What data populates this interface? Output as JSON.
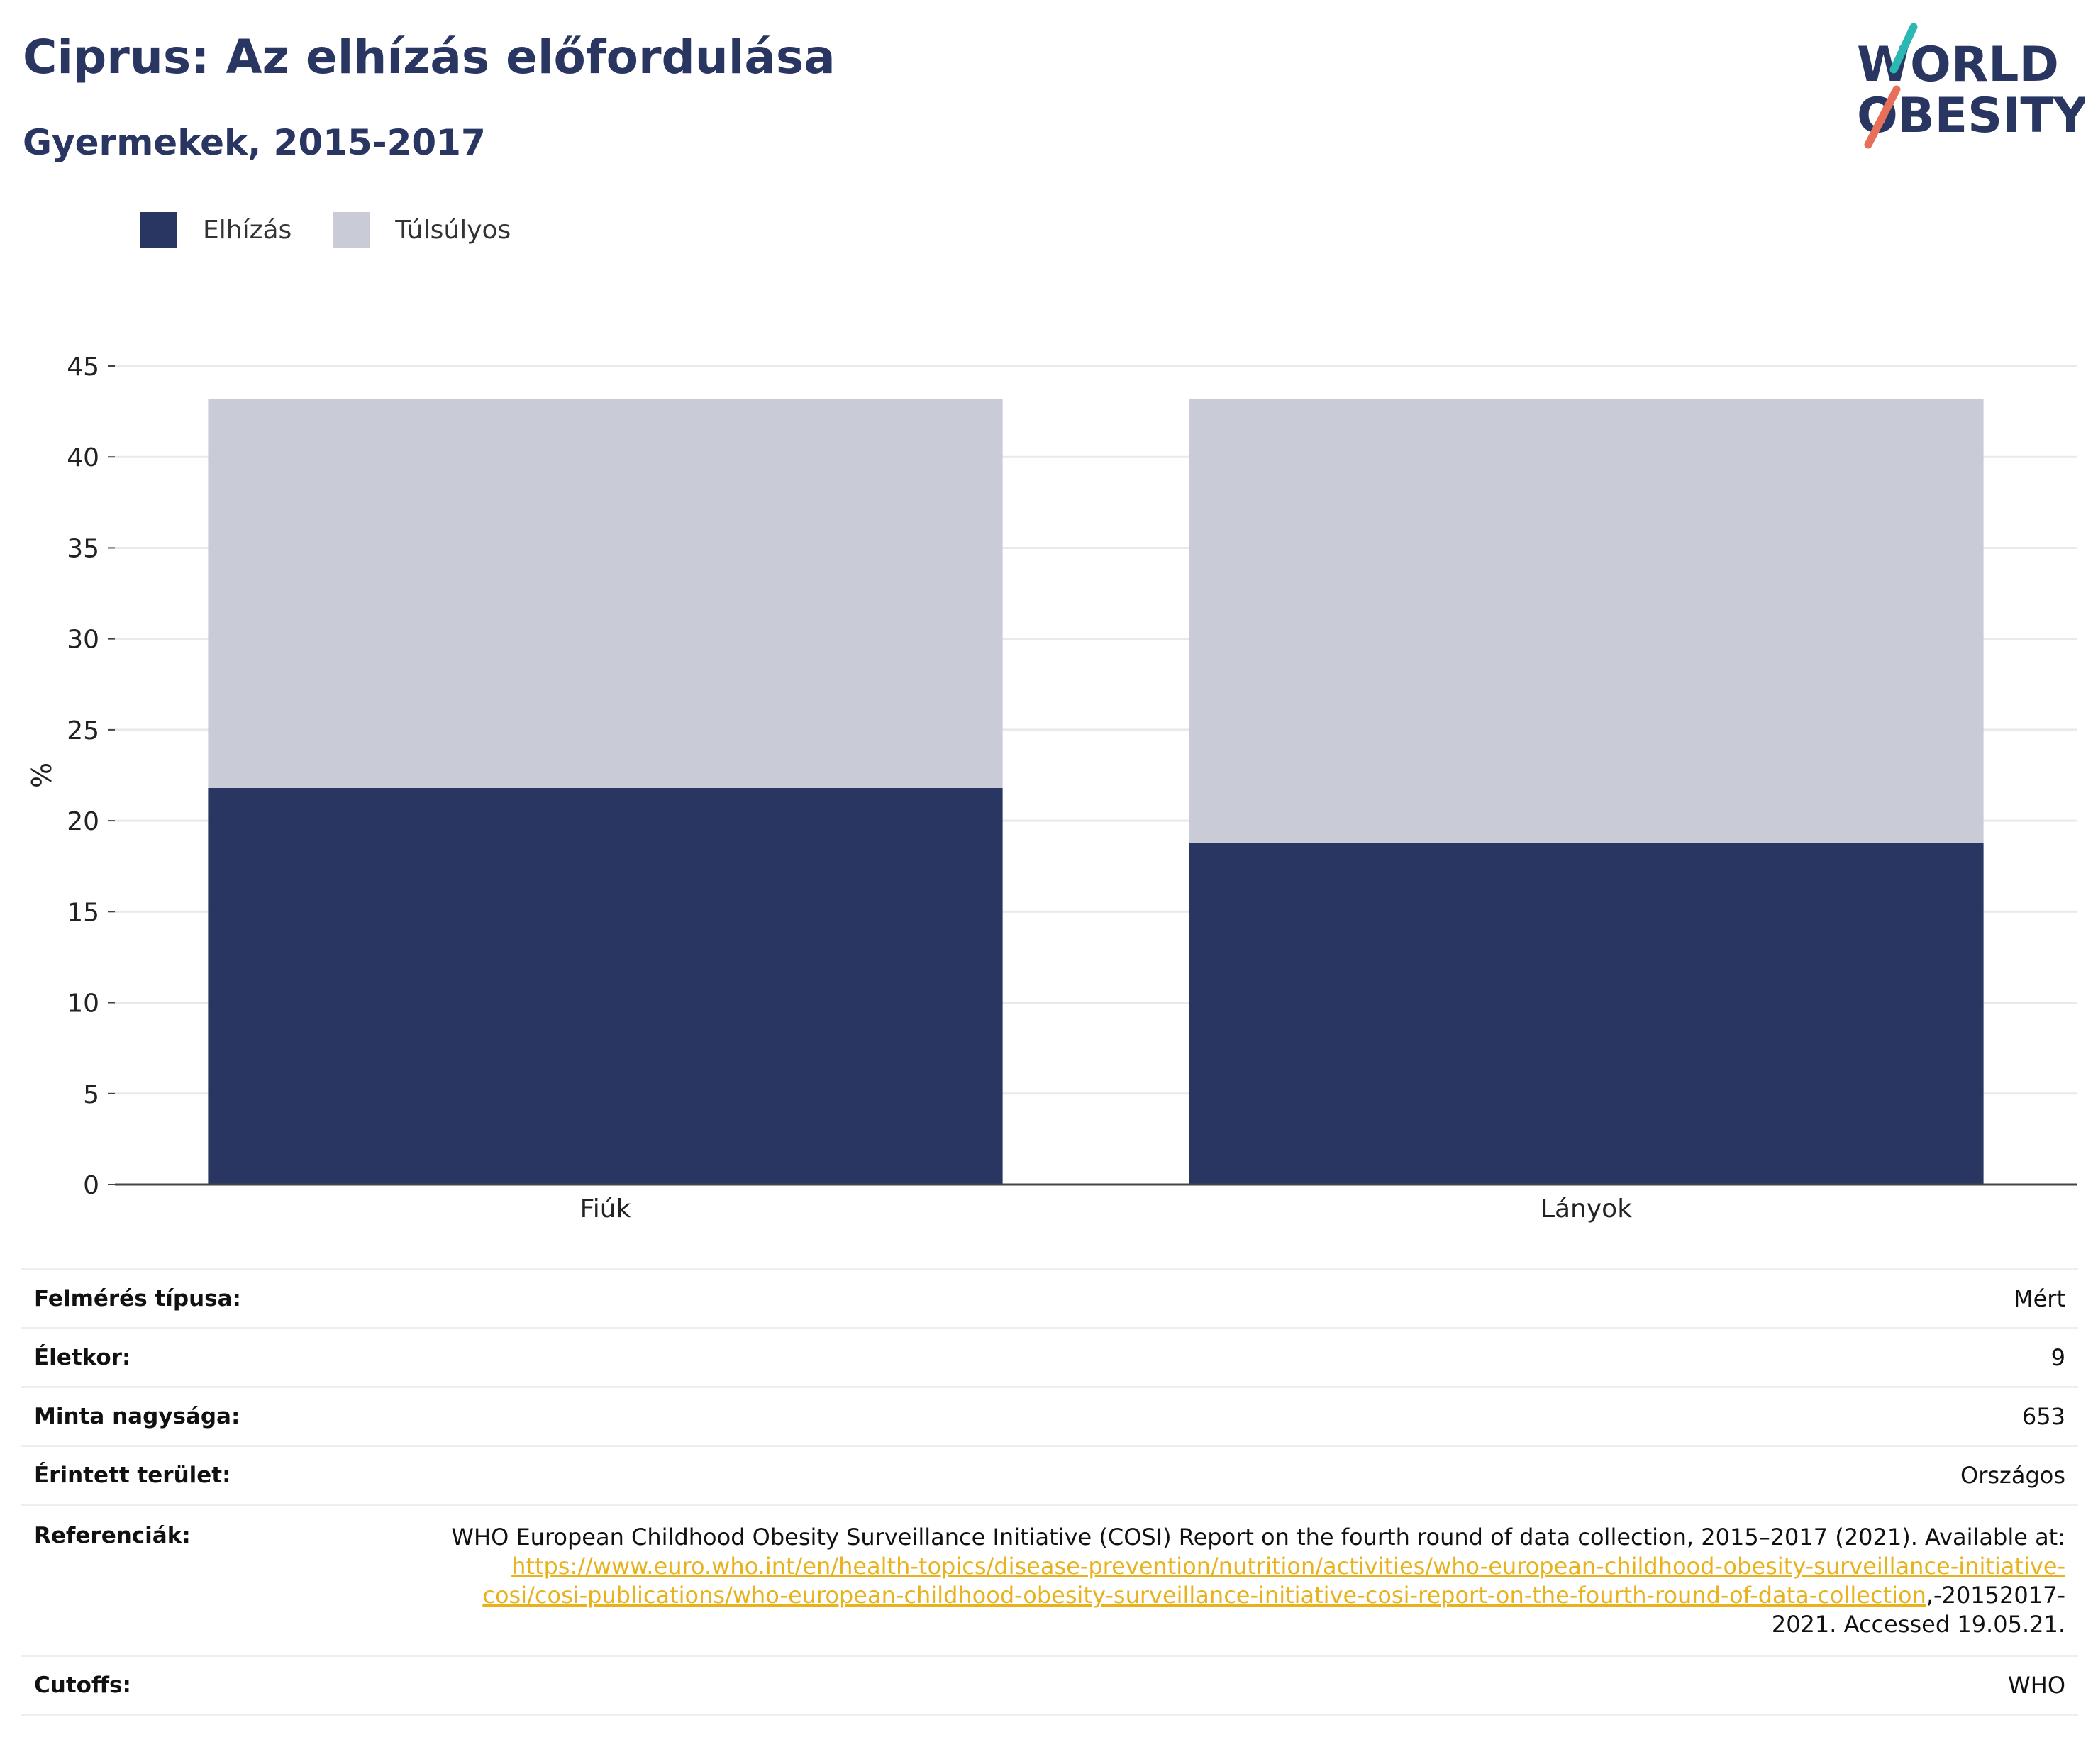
{
  "header": {
    "title": "Ciprus: Az elhízás előfordulása",
    "subtitle": "Gyermekek, 2015-2017"
  },
  "logo": {
    "line1": "WORLD",
    "line2": "OBESITY",
    "accent_colors": [
      "#2bb7b3",
      "#e8705a"
    ]
  },
  "legend": [
    {
      "label": "Elhízás",
      "color": "#2a3662"
    },
    {
      "label": "Túlsúlyos",
      "color": "#c9ccd7"
    }
  ],
  "chart_data": {
    "type": "bar",
    "stacked": true,
    "categories": [
      "Fiúk",
      "Lányok"
    ],
    "series": [
      {
        "name": "Elhízás",
        "color": "#2a3662",
        "values": [
          21.8,
          18.8
        ]
      },
      {
        "name": "Túlsúlyos",
        "color": "#c9ccd7",
        "values": [
          21.4,
          24.4
        ]
      }
    ],
    "ylabel": "%",
    "ylim": [
      0,
      45
    ],
    "yticks": [
      0,
      5,
      10,
      15,
      20,
      25,
      30,
      35,
      40,
      45
    ],
    "grid": true
  },
  "meta": {
    "survey_type": {
      "label": "Felmérés típusa:",
      "value": "Mért"
    },
    "age": {
      "label": "Életkor:",
      "value": "9"
    },
    "sample_size": {
      "label": "Minta nagysága:",
      "value": "653"
    },
    "area": {
      "label": "Érintett terület:",
      "value": "Országos"
    },
    "references": {
      "label": "Referenciák:",
      "text_before": "WHO European Childhood Obesity Surveillance Initiative (COSI) Report on the fourth round of data collection, 2015–2017 (2021). Available at: ",
      "link": "https://www.euro.who.int/en/health-topics/disease-prevention/nutrition/activities/who-european-childhood-obesity-surveillance-initiative-cosi/cosi-publications/who-european-childhood-obesity-surveillance-initiative-cosi-report-on-the-fourth-round-of-data-collection",
      "text_after": ",-20152017-2021. Accessed 19.05.21."
    },
    "cutoffs": {
      "label": "Cutoffs:",
      "value": "WHO"
    }
  }
}
